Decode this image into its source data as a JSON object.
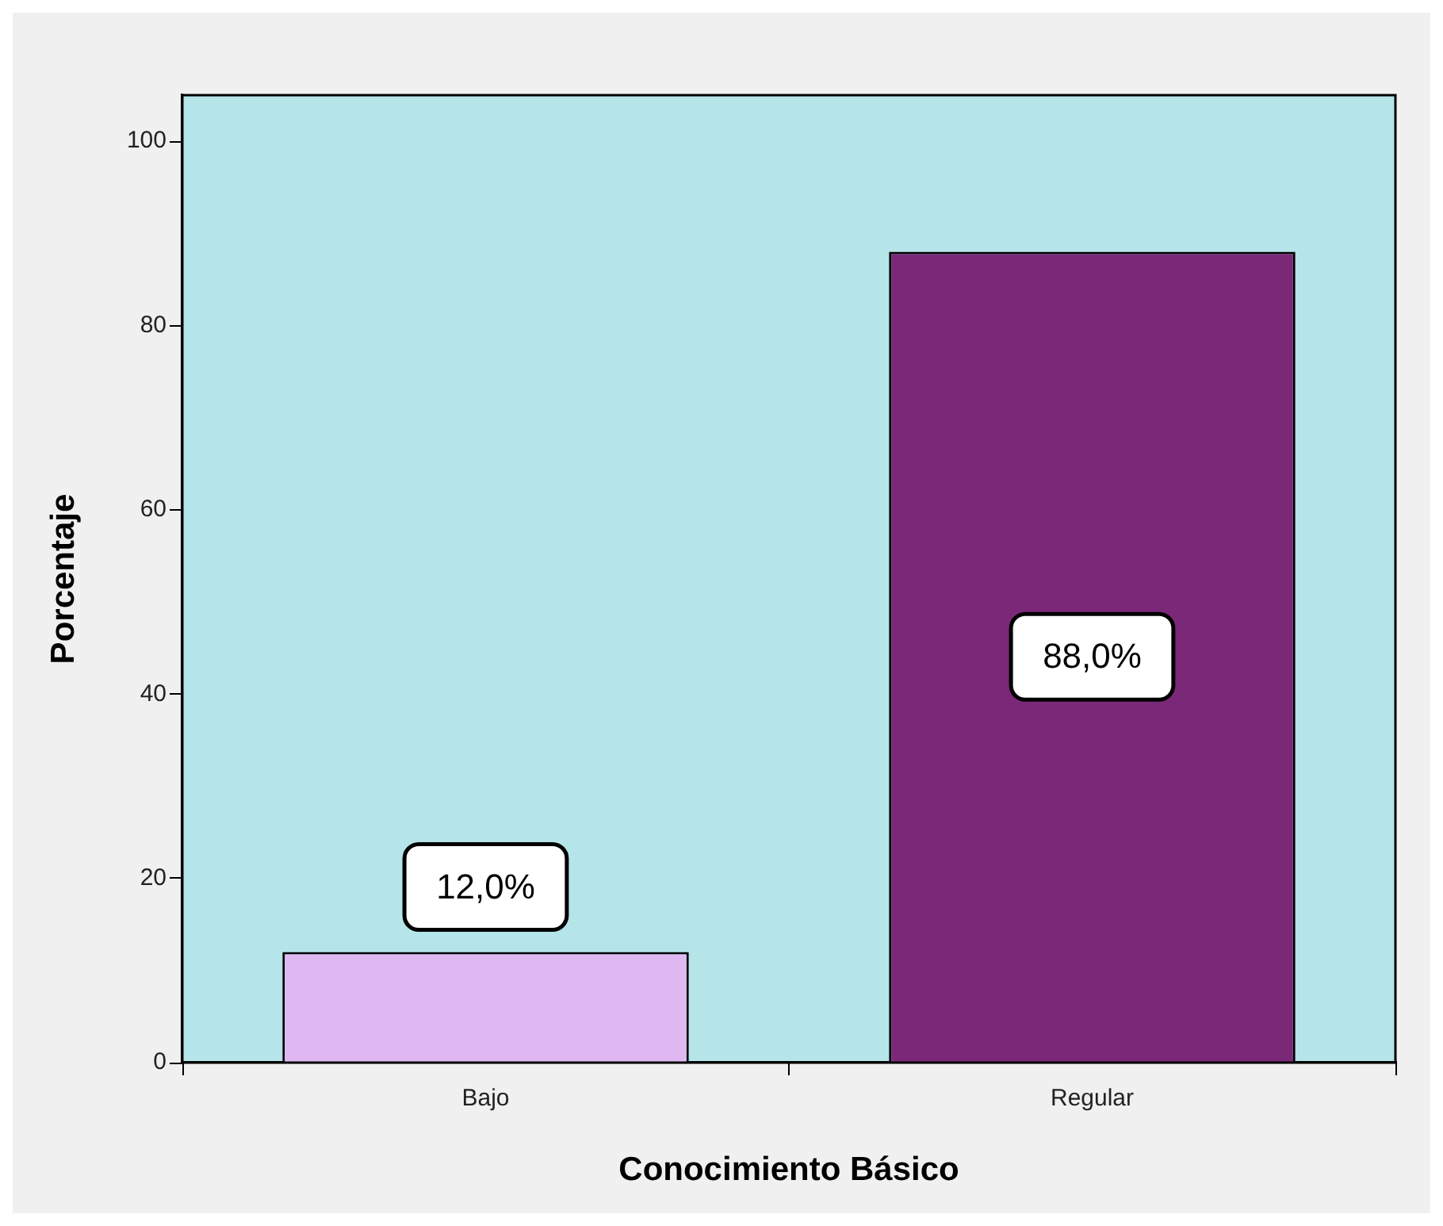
{
  "chart_data": {
    "type": "bar",
    "categories": [
      "Bajo",
      "Regular"
    ],
    "values": [
      12,
      88
    ],
    "colors": [
      "#dfb8f2",
      "#7b2879"
    ],
    "value_labels": [
      "12,0%",
      "88,0%"
    ],
    "xlabel": "Conocimiento Básico",
    "ylabel": "Porcentaje",
    "ylim": [
      0,
      105
    ],
    "yticks": [
      0,
      20,
      40,
      60,
      80,
      100
    ],
    "grid": false
  }
}
